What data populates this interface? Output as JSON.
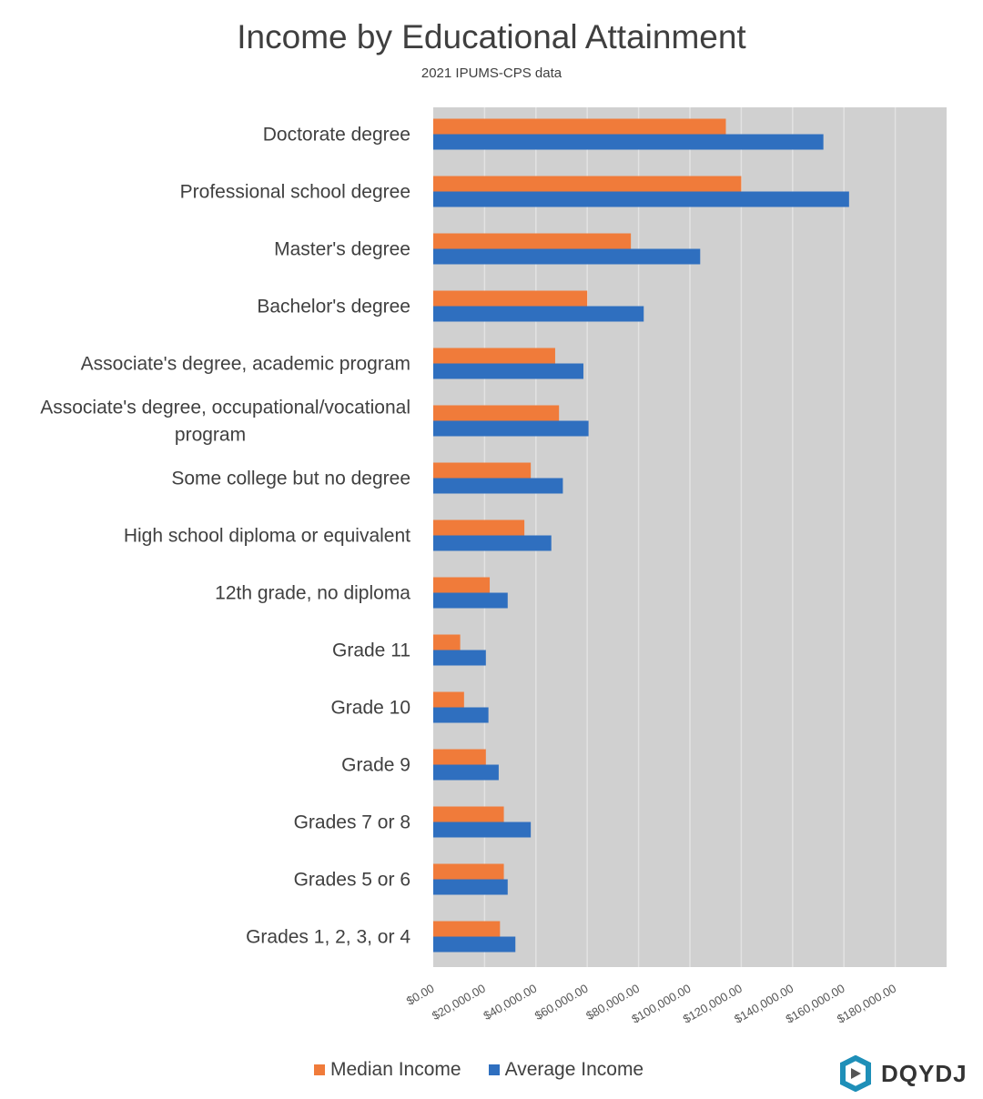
{
  "chart_data": {
    "type": "bar",
    "orientation": "horizontal",
    "title": "Income by Educational Attainment",
    "subtitle": "2021 IPUMS-CPS data",
    "xlabel": "",
    "ylabel": "",
    "xlim": [
      0,
      200000
    ],
    "grid": true,
    "legend_position": "bottom",
    "categories": [
      "Doctorate degree",
      "Professional school degree",
      "Master's degree",
      "Bachelor's degree",
      "Associate's degree, academic program",
      "Associate's degree, occupational/vocational program",
      "Some college but no degree",
      "High school diploma or equivalent",
      "12th grade, no diploma",
      "Grade 11",
      "Grade 10",
      "Grade 9",
      "Grades 7 or 8",
      "Grades 5 or 6",
      "Grades 1, 2, 3, or 4"
    ],
    "category_lines": [
      [
        "Doctorate degree"
      ],
      [
        "Professional school degree"
      ],
      [
        "Master's degree"
      ],
      [
        "Bachelor's degree"
      ],
      [
        "Associate's degree, academic program"
      ],
      [
        "Associate's degree, occupational/vocational",
        "program"
      ],
      [
        "Some college but no degree"
      ],
      [
        "High school diploma or equivalent"
      ],
      [
        "12th grade, no diploma"
      ],
      [
        "Grade 11"
      ],
      [
        "Grade 10"
      ],
      [
        "Grade 9"
      ],
      [
        "Grades 7 or 8"
      ],
      [
        "Grades 5 or 6"
      ],
      [
        "Grades 1, 2, 3, or 4"
      ]
    ],
    "series": [
      {
        "name": "Median Income",
        "color": "#F07B3A",
        "values": [
          114000,
          120000,
          77000,
          60000,
          47500,
          49000,
          38000,
          35500,
          22000,
          10500,
          12000,
          20500,
          27500,
          27500,
          26000
        ]
      },
      {
        "name": "Average Income",
        "color": "#2F6FBF",
        "values": [
          152000,
          162000,
          104000,
          82000,
          58500,
          60500,
          50500,
          46000,
          29000,
          20500,
          21500,
          25500,
          38000,
          29000,
          32000
        ]
      }
    ],
    "tick_values": [
      0,
      20000,
      40000,
      60000,
      80000,
      100000,
      120000,
      140000,
      160000,
      180000
    ],
    "tick_labels": [
      "$0.00",
      "$20,000.00",
      "$40,000.00",
      "$60,000.00",
      "$80,000.00",
      "$100,000.00",
      "$120,000.00",
      "$140,000.00",
      "$160,000.00",
      "$180,000.00"
    ]
  },
  "logo": {
    "text": "DQYDJ"
  },
  "colors": {
    "plot_bg": "#D0D0D0",
    "grid": "#E2E2E2"
  }
}
